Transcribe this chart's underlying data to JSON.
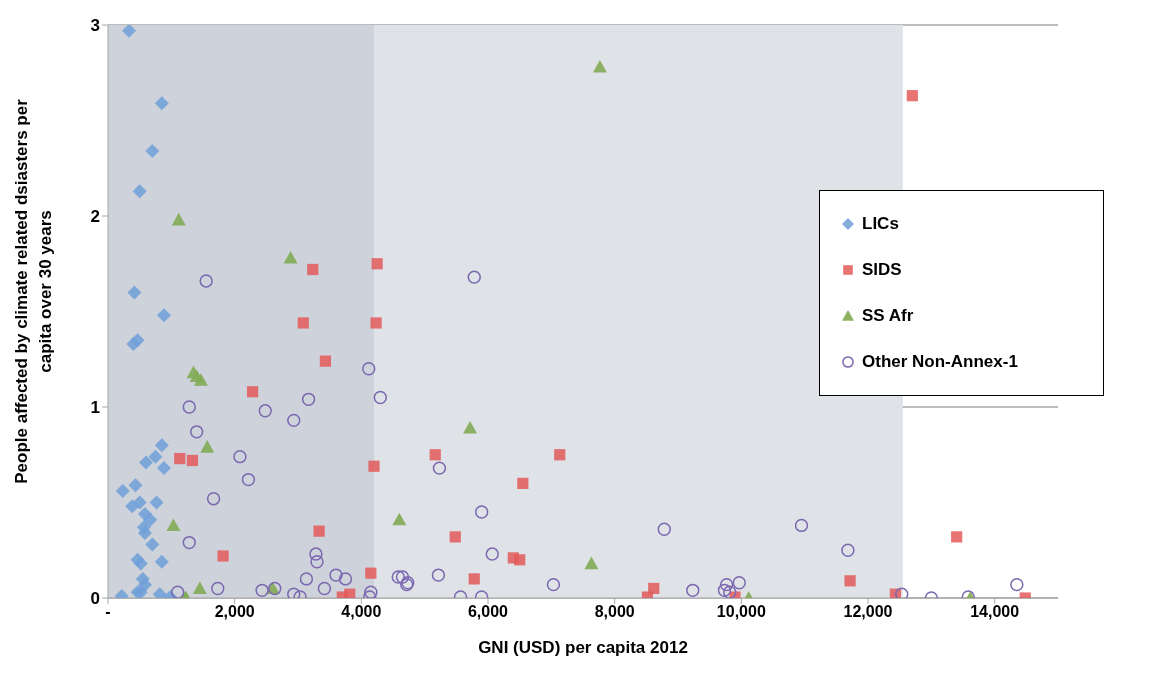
{
  "chart_data": {
    "type": "scatter",
    "xlabel": "GNI (USD) per capita 2012",
    "ylabel": "People affected by climate related dsiasters per capita over 30 years",
    "xlim": [
      0,
      15000
    ],
    "xticks": [
      {
        "value": 0,
        "label": "-"
      },
      {
        "value": 2000,
        "label": "2,000"
      },
      {
        "value": 4000,
        "label": "4,000"
      },
      {
        "value": 6000,
        "label": "6,000"
      },
      {
        "value": 8000,
        "label": "8,000"
      },
      {
        "value": 10000,
        "label": "10,000"
      },
      {
        "value": 12000,
        "label": "12,000"
      },
      {
        "value": 14000,
        "label": "14,000"
      }
    ],
    "ylim": [
      0,
      3
    ],
    "yticks": [
      0,
      1,
      2,
      3
    ],
    "grid": "y",
    "legend": "right",
    "bands": [
      {
        "axis": "x",
        "from": 0,
        "to": 4200,
        "color": "#cdd2db"
      },
      {
        "axis": "x",
        "from": 4200,
        "to": 12550,
        "color": "#dfe2e7"
      }
    ],
    "series": [
      {
        "name": "LICs",
        "color": "#6f9fd8",
        "marker": "diamond",
        "x": [
          333,
          850,
          700,
          500,
          417,
          883,
          400,
          467,
          850,
          600,
          750,
          883,
          233,
          433,
          383,
          500,
          767,
          583,
          667,
          567,
          583,
          700,
          467,
          517,
          850,
          550,
          583,
          467,
          517,
          217,
          817,
          983
        ],
        "values": [
          2.97,
          2.59,
          2.34,
          2.13,
          1.6,
          1.48,
          1.33,
          1.35,
          0.8,
          0.71,
          0.74,
          0.68,
          0.56,
          0.59,
          0.48,
          0.5,
          0.5,
          0.44,
          0.41,
          0.37,
          0.34,
          0.28,
          0.2,
          0.18,
          0.19,
          0.1,
          0.07,
          0.03,
          0.03,
          0.01,
          0.02,
          0.005
        ]
      },
      {
        "name": "SIDS",
        "color": "#e35a5a",
        "marker": "square",
        "x": [
          3233,
          4250,
          3083,
          4233,
          3433,
          2283,
          1133,
          1333,
          4200,
          3333,
          1817,
          4150,
          3700,
          3817,
          5167,
          7133,
          6550,
          5483,
          6400,
          6500,
          5783,
          8517,
          8617,
          9900,
          12700,
          13400,
          11717,
          12433,
          14483
        ],
        "values": [
          1.72,
          1.75,
          1.44,
          1.44,
          1.24,
          1.08,
          0.73,
          0.72,
          0.69,
          0.35,
          0.22,
          0.13,
          0.005,
          0.02,
          0.75,
          0.75,
          0.6,
          0.32,
          0.21,
          0.2,
          0.1,
          0.005,
          0.05,
          0.005,
          2.63,
          0.32,
          0.09,
          0.02,
          0
        ]
      },
      {
        "name": "SS Afr",
        "color": "#82ab55",
        "marker": "triangle",
        "x": [
          1117,
          2883,
          1350,
          1400,
          1467,
          1567,
          1033,
          1217,
          1233,
          1450,
          2600,
          5717,
          4600,
          7633,
          7767,
          10117,
          13617
        ],
        "values": [
          1.98,
          1.78,
          1.18,
          1.16,
          1.14,
          0.79,
          0.38,
          0,
          0,
          0.05,
          0.05,
          0.89,
          0.41,
          0.18,
          2.78,
          0,
          0
        ]
      },
      {
        "name": "Other Non-Annex-1",
        "color": "#7b68b0",
        "marker": "circle",
        "x": [
          1550,
          4117,
          4300,
          3167,
          1283,
          2483,
          2933,
          1400,
          2083,
          2217,
          1667,
          1283,
          3283,
          3300,
          3600,
          3750,
          3133,
          3417,
          1733,
          2433,
          2633,
          1100,
          2933,
          3033,
          4150,
          4133,
          4583,
          5783,
          5233,
          5900,
          8783,
          6067,
          4650,
          4733,
          4717,
          5217,
          7033,
          5567,
          5900,
          9233,
          9767,
          9967,
          9733,
          9817,
          10950,
          11683,
          12533,
          13000,
          13583,
          14350
        ],
        "values": [
          1.66,
          1.2,
          1.05,
          1.04,
          1.0,
          0.98,
          0.93,
          0.87,
          0.74,
          0.62,
          0.52,
          0.29,
          0.23,
          0.19,
          0.12,
          0.1,
          0.1,
          0.05,
          0.05,
          0.04,
          0.05,
          0.03,
          0.02,
          0.005,
          0.03,
          0.005,
          0.11,
          1.68,
          0.68,
          0.45,
          0.36,
          0.23,
          0.11,
          0.08,
          0.07,
          0.12,
          0.07,
          0.005,
          0.005,
          0.04,
          0.07,
          0.08,
          0.04,
          0.03,
          0.38,
          0.25,
          0.02,
          0,
          0.005,
          0.07
        ]
      }
    ]
  }
}
